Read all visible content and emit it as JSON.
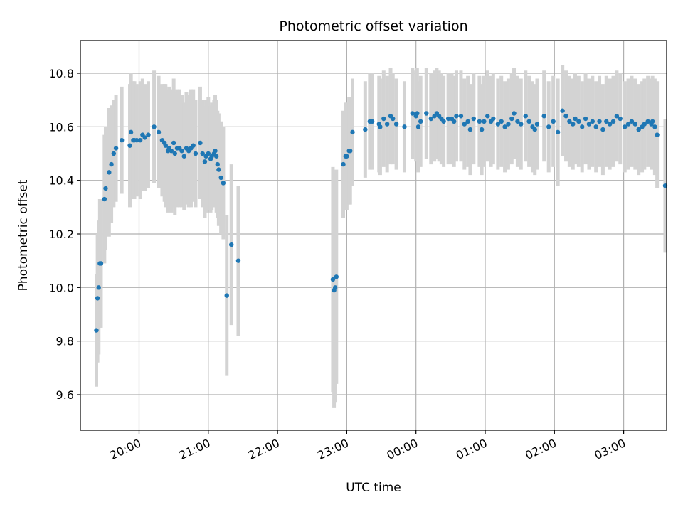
{
  "chart_data": {
    "type": "scatter",
    "title": "Photometric offset variation",
    "xlabel": "UTC time",
    "ylabel": "Photometric offset",
    "x_unit": "minutes after 19:00 UTC",
    "xlim": [
      0,
      516
    ],
    "ylim": [
      9.45,
      10.92
    ],
    "grid": true,
    "x_ticks": [
      {
        "value": 60,
        "label": "20:00"
      },
      {
        "value": 120,
        "label": "21:00"
      },
      {
        "value": 180,
        "label": "22:00"
      },
      {
        "value": 240,
        "label": "23:00"
      },
      {
        "value": 300,
        "label": "00:00"
      },
      {
        "value": 360,
        "label": "01:00"
      },
      {
        "value": 420,
        "label": "02:00"
      },
      {
        "value": 480,
        "label": "03:00"
      }
    ],
    "y_ticks": [
      {
        "value": 9.6,
        "label": "9.6"
      },
      {
        "value": 9.8,
        "label": "9.8"
      },
      {
        "value": 10.0,
        "label": "10.0"
      },
      {
        "value": 10.2,
        "label": "10.2"
      },
      {
        "value": 10.4,
        "label": "10.4"
      },
      {
        "value": 10.6,
        "label": "10.6"
      },
      {
        "value": 10.8,
        "label": "10.8"
      }
    ],
    "colors": {
      "points": "#1f77b4",
      "errorbars": "#d3d3d3",
      "grid": "#b0b0b0"
    },
    "points": [
      [
        23,
        9.84,
        0.21
      ],
      [
        24,
        9.96,
        0.24
      ],
      [
        25,
        10.0,
        0.25
      ],
      [
        26,
        10.09,
        0.24
      ],
      [
        27,
        10.09,
        0.24
      ],
      [
        30,
        10.33,
        0.24
      ],
      [
        31,
        10.37,
        0.23
      ],
      [
        34,
        10.43,
        0.24
      ],
      [
        36,
        10.46,
        0.22
      ],
      [
        38,
        10.5,
        0.2
      ],
      [
        40,
        10.52,
        0.2
      ],
      [
        45,
        10.55,
        0.2
      ],
      [
        52,
        10.53,
        0.23
      ],
      [
        53,
        10.58,
        0.22
      ],
      [
        55,
        10.55,
        0.22
      ],
      [
        56,
        10.55,
        0.22
      ],
      [
        58,
        10.55,
        0.21
      ],
      [
        61,
        10.55,
        0.22
      ],
      [
        63,
        10.57,
        0.21
      ],
      [
        65,
        10.56,
        0.2
      ],
      [
        68,
        10.57,
        0.2
      ],
      [
        73,
        10.6,
        0.21
      ],
      [
        77,
        10.58,
        0.21
      ],
      [
        80,
        10.55,
        0.21
      ],
      [
        82,
        10.54,
        0.22
      ],
      [
        83,
        10.53,
        0.23
      ],
      [
        85,
        10.51,
        0.23
      ],
      [
        86,
        10.52,
        0.23
      ],
      [
        88,
        10.51,
        0.23
      ],
      [
        90,
        10.54,
        0.24
      ],
      [
        91,
        10.5,
        0.23
      ],
      [
        93,
        10.52,
        0.22
      ],
      [
        95,
        10.52,
        0.22
      ],
      [
        97,
        10.51,
        0.21
      ],
      [
        99,
        10.49,
        0.2
      ],
      [
        101,
        10.52,
        0.21
      ],
      [
        103,
        10.51,
        0.21
      ],
      [
        105,
        10.52,
        0.22
      ],
      [
        107,
        10.53,
        0.21
      ],
      [
        109,
        10.5,
        0.2
      ],
      [
        113,
        10.54,
        0.21
      ],
      [
        115,
        10.5,
        0.2
      ],
      [
        117,
        10.47,
        0.21
      ],
      [
        118,
        10.49,
        0.21
      ],
      [
        120,
        10.5,
        0.21
      ],
      [
        122,
        10.48,
        0.2
      ],
      [
        123,
        10.49,
        0.2
      ],
      [
        125,
        10.5,
        0.2
      ],
      [
        126,
        10.51,
        0.21
      ],
      [
        127,
        10.49,
        0.21
      ],
      [
        128,
        10.46,
        0.2
      ],
      [
        129,
        10.44,
        0.21
      ],
      [
        131,
        10.41,
        0.21
      ],
      [
        133,
        10.39,
        0.21
      ],
      [
        136,
        9.97,
        0.3
      ],
      [
        140,
        10.16,
        0.3
      ],
      [
        146,
        10.1,
        0.28
      ],
      [
        228,
        10.03,
        0.42
      ],
      [
        229,
        9.99,
        0.44
      ],
      [
        230,
        10.0,
        0.43
      ],
      [
        231,
        10.04,
        0.4
      ],
      [
        237,
        10.46,
        0.2
      ],
      [
        239,
        10.49,
        0.2
      ],
      [
        240,
        10.49,
        0.2
      ],
      [
        242,
        10.51,
        0.2
      ],
      [
        243,
        10.51,
        0.2
      ],
      [
        245,
        10.58,
        0.2
      ],
      [
        256,
        10.59,
        0.18
      ],
      [
        260,
        10.62,
        0.18
      ],
      [
        262,
        10.62,
        0.18
      ],
      [
        268,
        10.61,
        0.18
      ],
      [
        269,
        10.6,
        0.18
      ],
      [
        272,
        10.63,
        0.18
      ],
      [
        275,
        10.61,
        0.18
      ],
      [
        278,
        10.64,
        0.18
      ],
      [
        280,
        10.63,
        0.17
      ],
      [
        283,
        10.61,
        0.17
      ],
      [
        290,
        10.6,
        0.17
      ],
      [
        297,
        10.65,
        0.17
      ],
      [
        300,
        10.64,
        0.17
      ],
      [
        301,
        10.65,
        0.17
      ],
      [
        302,
        10.6,
        0.17
      ],
      [
        304,
        10.62,
        0.17
      ],
      [
        309,
        10.65,
        0.17
      ],
      [
        313,
        10.63,
        0.17
      ],
      [
        316,
        10.64,
        0.17
      ],
      [
        318,
        10.65,
        0.17
      ],
      [
        320,
        10.64,
        0.17
      ],
      [
        322,
        10.63,
        0.17
      ],
      [
        324,
        10.62,
        0.17
      ],
      [
        328,
        10.63,
        0.17
      ],
      [
        331,
        10.63,
        0.17
      ],
      [
        333,
        10.62,
        0.17
      ],
      [
        335,
        10.64,
        0.17
      ],
      [
        339,
        10.64,
        0.17
      ],
      [
        342,
        10.61,
        0.17
      ],
      [
        345,
        10.62,
        0.17
      ],
      [
        347,
        10.59,
        0.17
      ],
      [
        350,
        10.63,
        0.17
      ],
      [
        355,
        10.62,
        0.17
      ],
      [
        357,
        10.59,
        0.17
      ],
      [
        359,
        10.62,
        0.17
      ],
      [
        362,
        10.64,
        0.17
      ],
      [
        365,
        10.62,
        0.17
      ],
      [
        367,
        10.63,
        0.17
      ],
      [
        371,
        10.61,
        0.17
      ],
      [
        374,
        10.62,
        0.17
      ],
      [
        377,
        10.6,
        0.17
      ],
      [
        380,
        10.61,
        0.17
      ],
      [
        383,
        10.63,
        0.17
      ],
      [
        385,
        10.65,
        0.17
      ],
      [
        388,
        10.62,
        0.17
      ],
      [
        391,
        10.61,
        0.17
      ],
      [
        395,
        10.64,
        0.17
      ],
      [
        398,
        10.62,
        0.17
      ],
      [
        401,
        10.6,
        0.17
      ],
      [
        403,
        10.59,
        0.17
      ],
      [
        405,
        10.61,
        0.17
      ],
      [
        411,
        10.64,
        0.17
      ],
      [
        415,
        10.6,
        0.17
      ],
      [
        419,
        10.62,
        0.17
      ],
      [
        423,
        10.58,
        0.2
      ],
      [
        427,
        10.66,
        0.17
      ],
      [
        430,
        10.64,
        0.17
      ],
      [
        433,
        10.62,
        0.17
      ],
      [
        436,
        10.61,
        0.17
      ],
      [
        438,
        10.63,
        0.17
      ],
      [
        441,
        10.62,
        0.17
      ],
      [
        444,
        10.6,
        0.17
      ],
      [
        447,
        10.63,
        0.17
      ],
      [
        450,
        10.61,
        0.17
      ],
      [
        453,
        10.62,
        0.17
      ],
      [
        456,
        10.6,
        0.17
      ],
      [
        459,
        10.62,
        0.17
      ],
      [
        462,
        10.59,
        0.17
      ],
      [
        465,
        10.62,
        0.17
      ],
      [
        468,
        10.61,
        0.17
      ],
      [
        471,
        10.62,
        0.17
      ],
      [
        474,
        10.64,
        0.17
      ],
      [
        477,
        10.63,
        0.17
      ],
      [
        481,
        10.6,
        0.17
      ],
      [
        484,
        10.61,
        0.17
      ],
      [
        487,
        10.62,
        0.17
      ],
      [
        490,
        10.61,
        0.17
      ],
      [
        493,
        10.59,
        0.17
      ],
      [
        496,
        10.6,
        0.17
      ],
      [
        498,
        10.61,
        0.17
      ],
      [
        501,
        10.62,
        0.17
      ],
      [
        504,
        10.61,
        0.17
      ],
      [
        505,
        10.62,
        0.17
      ],
      [
        507,
        10.6,
        0.18
      ],
      [
        509,
        10.57,
        0.2
      ],
      [
        516,
        10.38,
        0.25
      ]
    ]
  }
}
